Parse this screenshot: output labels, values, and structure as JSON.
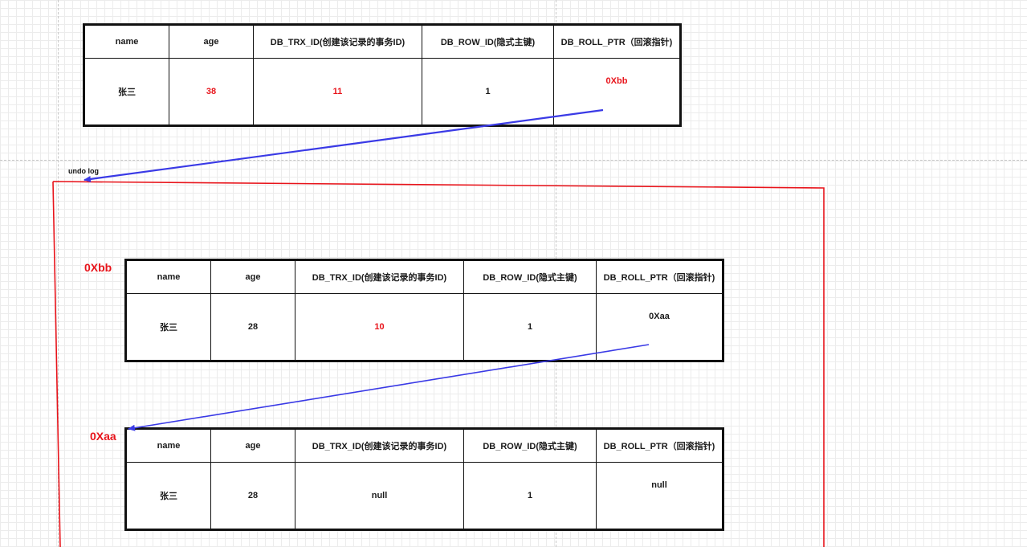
{
  "colors": {
    "accent_red": "#e8141b",
    "arrow_blue": "#3a3ae6",
    "border": "#111111"
  },
  "undo_log_label": "undo log",
  "current_row": {
    "headers": [
      "name",
      "age",
      "DB_TRX_ID(创建该记录的事务ID)",
      "DB_ROW_ID(隐式主键)",
      "DB_ROLL_PTR（回滚指针)"
    ],
    "values": [
      "张三",
      "38",
      "11",
      "1",
      "0Xbb"
    ]
  },
  "undo_records": [
    {
      "address": "0Xbb",
      "headers": [
        "name",
        "age",
        "DB_TRX_ID(创建该记录的事务ID)",
        "DB_ROW_ID(隐式主键)",
        "DB_ROLL_PTR（回滚指针)"
      ],
      "values": [
        "张三",
        "28",
        "10",
        "1",
        "0Xaa"
      ]
    },
    {
      "address": "0Xaa",
      "headers": [
        "name",
        "age",
        "DB_TRX_ID(创建该记录的事务ID)",
        "DB_ROW_ID(隐式主键)",
        "DB_ROLL_PTR（回滚指针)"
      ],
      "values": [
        "张三",
        "28",
        "null",
        "1",
        "null"
      ]
    }
  ]
}
